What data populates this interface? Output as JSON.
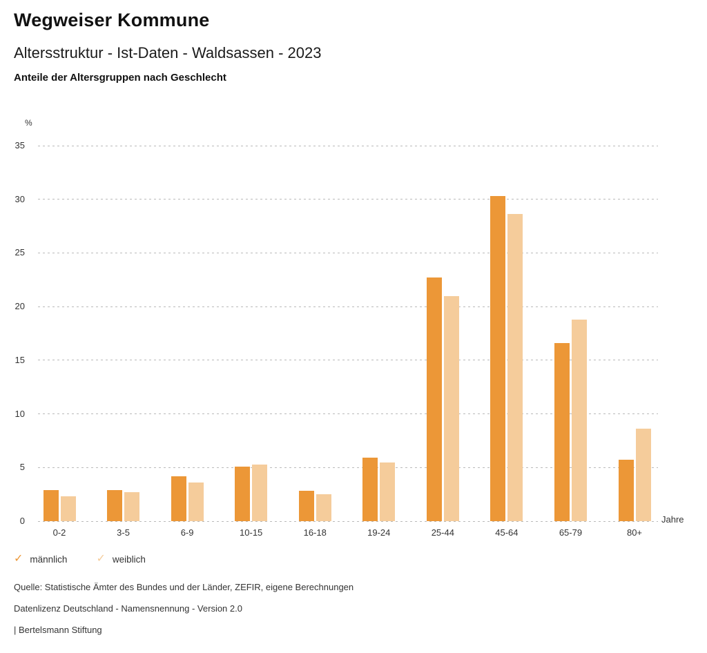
{
  "header": {
    "title": "Wegweiser Kommune",
    "subtitle": "Altersstruktur - Ist-Daten - Waldsassen - 2023",
    "chart_heading": "Anteile der Altersgruppen nach Geschlecht"
  },
  "chart_data": {
    "type": "bar",
    "title": "Anteile der Altersgruppen nach Geschlecht",
    "categories": [
      "0-2",
      "3-5",
      "6-9",
      "10-15",
      "16-18",
      "19-24",
      "25-44",
      "45-64",
      "65-79",
      "80+"
    ],
    "series": [
      {
        "name": "männlich",
        "color": "#EC9737",
        "values": [
          2.9,
          2.9,
          4.2,
          5.1,
          2.8,
          5.9,
          22.7,
          30.3,
          16.6,
          5.7
        ]
      },
      {
        "name": "weiblich",
        "color": "#F5CC9B",
        "values": [
          2.3,
          2.7,
          3.6,
          5.3,
          2.5,
          5.5,
          21.0,
          28.6,
          18.8,
          8.6
        ]
      }
    ],
    "xlabel": "Jahre",
    "ylabel": "%",
    "ylim": [
      0,
      35
    ],
    "yticks": [
      0,
      5,
      10,
      15,
      20,
      25,
      30,
      35
    ],
    "grid": "horizontal-dotted",
    "legend_position": "bottom-left"
  },
  "legend": {
    "items": [
      {
        "label": "männlich",
        "color": "#EC9737",
        "icon": "check-icon"
      },
      {
        "label": "weiblich",
        "color": "#F5CC9B",
        "icon": "check-icon"
      }
    ]
  },
  "footer": {
    "lines": [
      "Quelle: Statistische Ämter des Bundes und der Länder, ZEFIR, eigene Berechnungen",
      "Datenlizenz Deutschland - Namensnennung - Version 2.0",
      "| Bertelsmann Stiftung"
    ]
  }
}
